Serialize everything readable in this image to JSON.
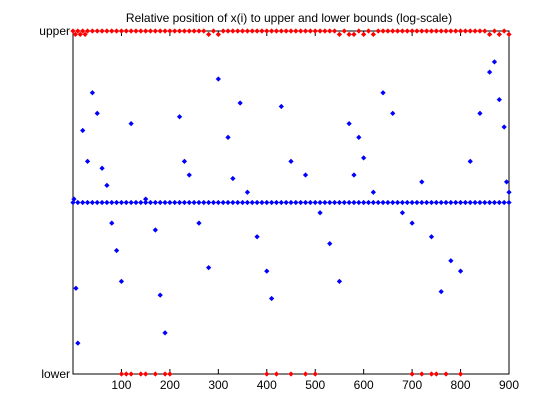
{
  "chart_data": {
    "type": "scatter",
    "title": "Relative position of x(i) to upper and lower bounds (log-scale)",
    "xlabel": "",
    "ylabel": "",
    "xlim": [
      0,
      900
    ],
    "ylim": [
      0,
      1
    ],
    "grid": false,
    "x_ticks": [
      100,
      200,
      300,
      400,
      500,
      600,
      700,
      800,
      900
    ],
    "y_ticks": [
      {
        "value": 0,
        "label": "lower"
      },
      {
        "value": 1,
        "label": "upper"
      }
    ],
    "series": [
      {
        "color": "#0000ff",
        "marker": "diamond",
        "points": [
          [
            2,
            0.51
          ],
          [
            6,
            0.25
          ],
          [
            10,
            0.09
          ],
          [
            20,
            0.71
          ],
          [
            30,
            0.62
          ],
          [
            40,
            0.82
          ],
          [
            50,
            0.76
          ],
          [
            60,
            0.6
          ],
          [
            70,
            0.55
          ],
          [
            80,
            0.44
          ],
          [
            90,
            0.36
          ],
          [
            100,
            0.27
          ],
          [
            120,
            0.73
          ],
          [
            150,
            0.51
          ],
          [
            170,
            0.42
          ],
          [
            180,
            0.23
          ],
          [
            190,
            0.12
          ],
          [
            220,
            0.75
          ],
          [
            230,
            0.62
          ],
          [
            240,
            0.58
          ],
          [
            260,
            0.44
          ],
          [
            280,
            0.31
          ],
          [
            300,
            0.86
          ],
          [
            320,
            0.69
          ],
          [
            330,
            0.57
          ],
          [
            345,
            0.79
          ],
          [
            360,
            0.53
          ],
          [
            380,
            0.4
          ],
          [
            400,
            0.3
          ],
          [
            410,
            0.22
          ],
          [
            430,
            0.78
          ],
          [
            450,
            0.62
          ],
          [
            480,
            0.58
          ],
          [
            510,
            0.47
          ],
          [
            530,
            0.38
          ],
          [
            550,
            0.27
          ],
          [
            570,
            0.73
          ],
          [
            580,
            0.58
          ],
          [
            590,
            0.69
          ],
          [
            600,
            0.63
          ],
          [
            620,
            0.53
          ],
          [
            640,
            0.82
          ],
          [
            660,
            0.76
          ],
          [
            680,
            0.47
          ],
          [
            700,
            0.44
          ],
          [
            720,
            0.56
          ],
          [
            740,
            0.4
          ],
          [
            760,
            0.24
          ],
          [
            780,
            0.33
          ],
          [
            800,
            0.3
          ],
          [
            820,
            0.62
          ],
          [
            840,
            0.76
          ],
          [
            860,
            0.88
          ],
          [
            870,
            0.91
          ],
          [
            880,
            0.8
          ],
          [
            890,
            0.72
          ],
          [
            895,
            0.56
          ],
          [
            900,
            0.53
          ]
        ]
      },
      {
        "color": "#0000ff",
        "marker": "diamond",
        "points": [
          [
            0,
            0.5
          ],
          [
            10,
            0.5
          ],
          [
            20,
            0.5
          ],
          [
            30,
            0.5
          ],
          [
            40,
            0.5
          ],
          [
            50,
            0.5
          ],
          [
            60,
            0.5
          ],
          [
            70,
            0.5
          ],
          [
            80,
            0.5
          ],
          [
            90,
            0.5
          ],
          [
            100,
            0.5
          ],
          [
            110,
            0.5
          ],
          [
            120,
            0.5
          ],
          [
            130,
            0.5
          ],
          [
            140,
            0.5
          ],
          [
            150,
            0.5
          ],
          [
            160,
            0.5
          ],
          [
            170,
            0.5
          ],
          [
            180,
            0.5
          ],
          [
            190,
            0.5
          ],
          [
            200,
            0.5
          ],
          [
            210,
            0.5
          ],
          [
            220,
            0.5
          ],
          [
            230,
            0.5
          ],
          [
            240,
            0.5
          ],
          [
            250,
            0.5
          ],
          [
            260,
            0.5
          ],
          [
            270,
            0.5
          ],
          [
            280,
            0.5
          ],
          [
            290,
            0.5
          ],
          [
            300,
            0.5
          ],
          [
            310,
            0.5
          ],
          [
            320,
            0.5
          ],
          [
            330,
            0.5
          ],
          [
            340,
            0.5
          ],
          [
            350,
            0.5
          ],
          [
            360,
            0.5
          ],
          [
            370,
            0.5
          ],
          [
            380,
            0.5
          ],
          [
            390,
            0.5
          ],
          [
            400,
            0.5
          ],
          [
            410,
            0.5
          ],
          [
            420,
            0.5
          ],
          [
            430,
            0.5
          ],
          [
            440,
            0.5
          ],
          [
            450,
            0.5
          ],
          [
            460,
            0.5
          ],
          [
            470,
            0.5
          ],
          [
            480,
            0.5
          ],
          [
            490,
            0.5
          ],
          [
            500,
            0.5
          ],
          [
            510,
            0.5
          ],
          [
            520,
            0.5
          ],
          [
            530,
            0.5
          ],
          [
            540,
            0.5
          ],
          [
            550,
            0.5
          ],
          [
            560,
            0.5
          ],
          [
            570,
            0.5
          ],
          [
            580,
            0.5
          ],
          [
            590,
            0.5
          ],
          [
            600,
            0.5
          ],
          [
            610,
            0.5
          ],
          [
            620,
            0.5
          ],
          [
            630,
            0.5
          ],
          [
            640,
            0.5
          ],
          [
            650,
            0.5
          ],
          [
            660,
            0.5
          ],
          [
            670,
            0.5
          ],
          [
            680,
            0.5
          ],
          [
            690,
            0.5
          ],
          [
            700,
            0.5
          ],
          [
            710,
            0.5
          ],
          [
            720,
            0.5
          ],
          [
            730,
            0.5
          ],
          [
            740,
            0.5
          ],
          [
            750,
            0.5
          ],
          [
            760,
            0.5
          ],
          [
            770,
            0.5
          ],
          [
            780,
            0.5
          ],
          [
            790,
            0.5
          ],
          [
            800,
            0.5
          ],
          [
            810,
            0.5
          ],
          [
            820,
            0.5
          ],
          [
            830,
            0.5
          ],
          [
            840,
            0.5
          ],
          [
            850,
            0.5
          ],
          [
            860,
            0.5
          ],
          [
            870,
            0.5
          ],
          [
            880,
            0.5
          ],
          [
            890,
            0.5
          ],
          [
            900,
            0.5
          ]
        ]
      },
      {
        "color": "#ff0000",
        "marker": "diamond",
        "points": [
          [
            0,
            1.0
          ],
          [
            5,
            0.99
          ],
          [
            10,
            1.0
          ],
          [
            15,
            0.99
          ],
          [
            20,
            1.0
          ],
          [
            25,
            0.99
          ],
          [
            30,
            1.0
          ],
          [
            40,
            1.0
          ],
          [
            50,
            1.0
          ],
          [
            60,
            1.0
          ],
          [
            70,
            1.0
          ],
          [
            80,
            1.0
          ],
          [
            90,
            1.0
          ],
          [
            100,
            1.0
          ],
          [
            110,
            1.0
          ],
          [
            120,
            1.0
          ],
          [
            130,
            1.0
          ],
          [
            140,
            1.0
          ],
          [
            150,
            1.0
          ],
          [
            160,
            1.0
          ],
          [
            170,
            1.0
          ],
          [
            180,
            1.0
          ],
          [
            190,
            1.0
          ],
          [
            200,
            1.0
          ],
          [
            210,
            1.0
          ],
          [
            220,
            1.0
          ],
          [
            230,
            1.0
          ],
          [
            240,
            1.0
          ],
          [
            250,
            1.0
          ],
          [
            260,
            1.0
          ],
          [
            270,
            1.0
          ],
          [
            280,
            0.99
          ],
          [
            290,
            1.0
          ],
          [
            300,
            0.99
          ],
          [
            310,
            1.0
          ],
          [
            320,
            1.0
          ],
          [
            330,
            1.0
          ],
          [
            340,
            1.0
          ],
          [
            350,
            1.0
          ],
          [
            360,
            1.0
          ],
          [
            370,
            1.0
          ],
          [
            380,
            1.0
          ],
          [
            390,
            1.0
          ],
          [
            400,
            1.0
          ],
          [
            410,
            1.0
          ],
          [
            420,
            1.0
          ],
          [
            430,
            1.0
          ],
          [
            440,
            1.0
          ],
          [
            450,
            1.0
          ],
          [
            460,
            1.0
          ],
          [
            470,
            1.0
          ],
          [
            480,
            1.0
          ],
          [
            490,
            1.0
          ],
          [
            500,
            1.0
          ],
          [
            510,
            1.0
          ],
          [
            520,
            1.0
          ],
          [
            530,
            1.0
          ],
          [
            540,
            1.0
          ],
          [
            550,
            0.99
          ],
          [
            560,
            1.0
          ],
          [
            570,
            0.99
          ],
          [
            580,
            0.99
          ],
          [
            590,
            1.0
          ],
          [
            600,
            0.99
          ],
          [
            610,
            1.0
          ],
          [
            620,
            0.99
          ],
          [
            630,
            1.0
          ],
          [
            640,
            1.0
          ],
          [
            650,
            1.0
          ],
          [
            660,
            1.0
          ],
          [
            670,
            1.0
          ],
          [
            680,
            1.0
          ],
          [
            690,
            1.0
          ],
          [
            700,
            1.0
          ],
          [
            710,
            1.0
          ],
          [
            720,
            1.0
          ],
          [
            730,
            1.0
          ],
          [
            740,
            1.0
          ],
          [
            750,
            1.0
          ],
          [
            760,
            1.0
          ],
          [
            770,
            1.0
          ],
          [
            780,
            1.0
          ],
          [
            790,
            1.0
          ],
          [
            800,
            1.0
          ],
          [
            810,
            1.0
          ],
          [
            820,
            1.0
          ],
          [
            830,
            1.0
          ],
          [
            840,
            1.0
          ],
          [
            850,
            1.0
          ],
          [
            860,
            0.99
          ],
          [
            870,
            1.0
          ],
          [
            880,
            0.99
          ],
          [
            890,
            1.0
          ],
          [
            900,
            0.99
          ]
        ]
      },
      {
        "color": "#ff0000",
        "marker": "diamond",
        "points": [
          [
            100,
            0.0
          ],
          [
            110,
            0.0
          ],
          [
            120,
            0.0
          ],
          [
            140,
            0.0
          ],
          [
            150,
            0.0
          ],
          [
            170,
            0.0
          ],
          [
            190,
            0.0
          ],
          [
            200,
            0.0
          ],
          [
            400,
            0.0
          ],
          [
            420,
            0.0
          ],
          [
            450,
            0.0
          ],
          [
            480,
            0.0
          ],
          [
            500,
            0.0
          ],
          [
            700,
            0.0
          ],
          [
            720,
            0.0
          ],
          [
            740,
            0.0
          ],
          [
            750,
            0.0
          ],
          [
            770,
            0.0
          ],
          [
            800,
            0.0
          ]
        ]
      }
    ]
  }
}
